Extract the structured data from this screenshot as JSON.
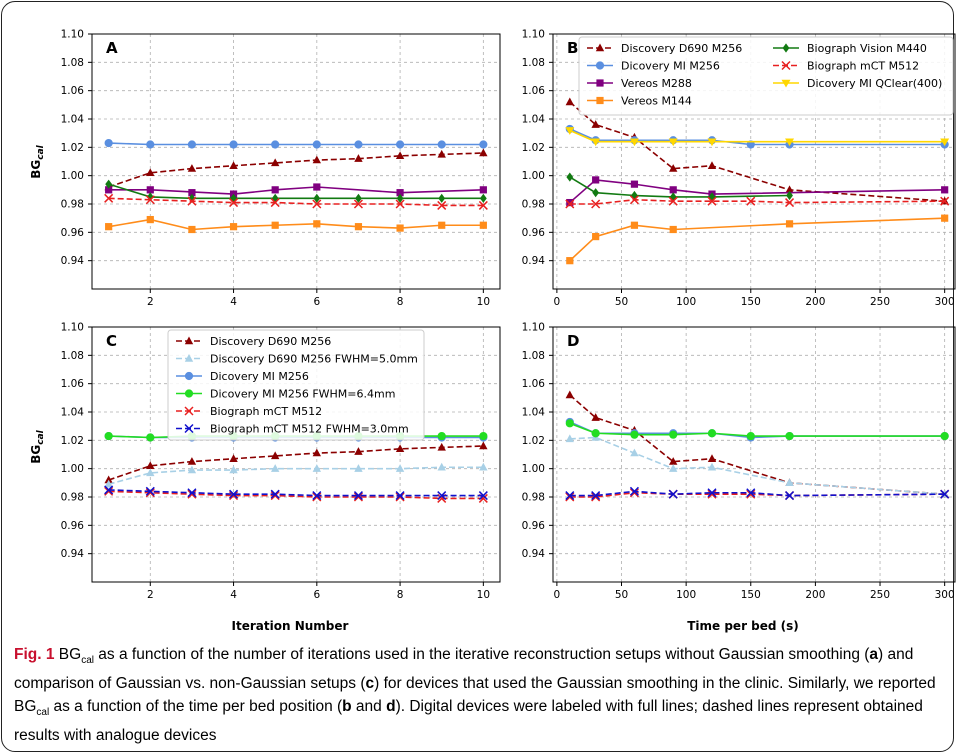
{
  "caption": {
    "fig_label": "Fig. 1",
    "part1": " BG",
    "sub": "cal",
    "part2": " as a function of the number of iterations used in the iterative reconstruction setups without Gaussian smoothing (",
    "a": "a",
    "part3": ") and comparison of Gaussian vs. non-Gaussian setups (",
    "c": "c",
    "part4": ") for devices that used the Gaussian smoothing in the clinic. Similarly, we reported BG",
    "sub2": "cal",
    "part5": " as a function of the time per bed position (",
    "b": "b",
    "and": " and ",
    "d": "d",
    "part6": "). Digital devices were labeled with full lines; dashed lines represent obtained results with analogue devices"
  },
  "colors": {
    "discovery_d690": "#8b0000",
    "discovery_d690_fwhm": "#a8d0e6",
    "discovery_mi": "#5a8fe0",
    "discovery_mi_fwhm": "#22dd22",
    "biograph_mct": "#e82020",
    "biograph_mct_fwhm": "#1010cc",
    "vereos_m288": "#800080",
    "vereos_m144": "#ff8c1a",
    "biograph_vision": "#127a12",
    "qclear": "#ffd700"
  },
  "axis_titles": {
    "ylabel_main": "BG",
    "ylabel_sub": "cal",
    "xlabel_left": "Iteration Number",
    "xlabel_right": "Time per bed (s)"
  },
  "chart_data": [
    {
      "panel": "A",
      "type": "line",
      "xlim": [
        0.6,
        10.4
      ],
      "ylim": [
        0.92,
        1.1
      ],
      "xticks": [
        2,
        4,
        6,
        8,
        10
      ],
      "yticks": [
        0.94,
        0.96,
        0.98,
        1.0,
        1.02,
        1.04,
        1.06,
        1.08,
        1.1
      ],
      "grid": true,
      "series": [
        {
          "key": "discovery_d690",
          "style": "dashed",
          "marker": "triangle",
          "x": [
            1,
            2,
            3,
            4,
            5,
            6,
            7,
            8,
            9,
            10
          ],
          "values": [
            0.992,
            1.002,
            1.005,
            1.007,
            1.009,
            1.011,
            1.012,
            1.014,
            1.015,
            1.016
          ]
        },
        {
          "key": "discovery_mi",
          "style": "solid",
          "marker": "circle",
          "x": [
            1,
            2,
            3,
            4,
            5,
            6,
            7,
            8,
            9,
            10
          ],
          "values": [
            1.023,
            1.022,
            1.022,
            1.022,
            1.022,
            1.022,
            1.022,
            1.022,
            1.022,
            1.022
          ]
        },
        {
          "key": "vereos_m288",
          "style": "solid",
          "marker": "square",
          "x": [
            1,
            2,
            4,
            5,
            6,
            8,
            10
          ],
          "values": [
            0.99,
            0.99,
            0.987,
            0.99,
            0.992,
            0.988,
            0.99
          ]
        },
        {
          "key": "vereos_m288",
          "style": "solid",
          "marker": "square",
          "x": [
            3
          ],
          "values": [
            0.988
          ]
        },
        {
          "key": "biograph_vision",
          "style": "solid",
          "marker": "diamond",
          "x": [
            1,
            2,
            3,
            4,
            5,
            6,
            7,
            8,
            9,
            10
          ],
          "values": [
            0.994,
            0.985,
            0.984,
            0.984,
            0.984,
            0.984,
            0.984,
            0.984,
            0.984,
            0.984
          ]
        },
        {
          "key": "biograph_mct",
          "style": "dashed",
          "marker": "x",
          "x": [
            1,
            2,
            3,
            4,
            5,
            6,
            7,
            8,
            9,
            10
          ],
          "values": [
            0.984,
            0.983,
            0.982,
            0.981,
            0.981,
            0.98,
            0.98,
            0.98,
            0.979,
            0.979
          ]
        },
        {
          "key": "vereos_m144",
          "style": "solid",
          "marker": "square",
          "x": [
            1,
            2,
            3,
            4,
            5,
            6,
            7,
            8,
            9,
            10
          ],
          "values": [
            0.964,
            0.969,
            0.962,
            0.964,
            0.965,
            0.966,
            0.964,
            0.963,
            0.965,
            0.965
          ]
        }
      ]
    },
    {
      "panel": "B",
      "type": "line",
      "xlim": [
        -3,
        308
      ],
      "ylim": [
        0.92,
        1.1
      ],
      "xticks": [
        0,
        50,
        100,
        150,
        200,
        250,
        300
      ],
      "yticks": [
        0.94,
        0.96,
        0.98,
        1.0,
        1.02,
        1.04,
        1.06,
        1.08,
        1.1
      ],
      "grid": true,
      "legend": {
        "position": "top",
        "entries": [
          {
            "key": "discovery_d690",
            "style": "dashed",
            "marker": "triangle",
            "label": "Discovery D690 M256"
          },
          {
            "key": "discovery_mi",
            "style": "solid",
            "marker": "circle",
            "label": "Dicovery MI M256"
          },
          {
            "key": "vereos_m288",
            "style": "solid",
            "marker": "square",
            "label": "Vereos M288"
          },
          {
            "key": "vereos_m144",
            "style": "solid",
            "marker": "square",
            "label": "Vereos M144"
          },
          {
            "key": "biograph_vision",
            "style": "solid",
            "marker": "diamond",
            "label": "Biograph Vision M440"
          },
          {
            "key": "biograph_mct",
            "style": "dashed",
            "marker": "x",
            "label": "Biograph mCT M512"
          },
          {
            "key": "qclear",
            "style": "solid",
            "marker": "tri-down",
            "label": "Dicovery MI QClear(400)"
          }
        ]
      },
      "series": [
        {
          "key": "discovery_d690",
          "style": "dashed",
          "marker": "triangle",
          "x": [
            10,
            30,
            60,
            90,
            120,
            180,
            300
          ],
          "values": [
            1.052,
            1.036,
            1.027,
            1.005,
            1.007,
            0.99,
            0.982
          ]
        },
        {
          "key": "discovery_mi",
          "style": "solid",
          "marker": "circle",
          "x": [
            10,
            30,
            60,
            90,
            120,
            150,
            180,
            300
          ],
          "values": [
            1.033,
            1.025,
            1.025,
            1.025,
            1.025,
            1.022,
            1.022,
            1.022
          ]
        },
        {
          "key": "qclear",
          "style": "solid",
          "marker": "tri-down",
          "x": [
            10,
            30,
            60,
            90,
            120,
            180,
            300
          ],
          "values": [
            1.032,
            1.024,
            1.024,
            1.024,
            1.024,
            1.024,
            1.024
          ]
        },
        {
          "key": "vereos_m288",
          "style": "solid",
          "marker": "square",
          "x": [
            10,
            30,
            60,
            90,
            120,
            300
          ],
          "values": [
            0.981,
            0.997,
            0.994,
            0.99,
            0.987,
            0.99
          ]
        },
        {
          "key": "biograph_vision",
          "style": "solid",
          "marker": "diamond",
          "x": [
            10,
            30,
            60,
            90,
            120,
            180
          ],
          "values": [
            0.999,
            0.988,
            0.986,
            0.985,
            0.985,
            0.986
          ]
        },
        {
          "key": "biograph_mct",
          "style": "dashed",
          "marker": "x",
          "x": [
            10,
            30,
            60,
            90,
            120,
            150,
            180,
            300
          ],
          "values": [
            0.98,
            0.98,
            0.983,
            0.982,
            0.982,
            0.982,
            0.981,
            0.982
          ]
        },
        {
          "key": "vereos_m144",
          "style": "solid",
          "marker": "square",
          "x": [
            10,
            30,
            60,
            90,
            180,
            300
          ],
          "values": [
            0.94,
            0.957,
            0.965,
            0.962,
            0.966,
            0.97
          ]
        }
      ]
    },
    {
      "panel": "C",
      "type": "line",
      "xlim": [
        0.6,
        10.4
      ],
      "ylim": [
        0.92,
        1.1
      ],
      "xticks": [
        2,
        4,
        6,
        8,
        10
      ],
      "yticks": [
        0.94,
        0.96,
        0.98,
        1.0,
        1.02,
        1.04,
        1.06,
        1.08,
        1.1
      ],
      "grid": true,
      "legend": {
        "position": "top-center",
        "entries": [
          {
            "key": "discovery_d690",
            "style": "dashed",
            "marker": "triangle",
            "label": "Discovery D690 M256"
          },
          {
            "key": "discovery_d690_fwhm",
            "style": "dashed",
            "marker": "triangle",
            "label": "Discovery D690 M256 FWHM=5.0mm"
          },
          {
            "key": "discovery_mi",
            "style": "solid",
            "marker": "circle",
            "label": "Dicovery MI M256"
          },
          {
            "key": "discovery_mi_fwhm",
            "style": "solid",
            "marker": "circle",
            "label": "Dicovery MI M256 FWHM=6.4mm"
          },
          {
            "key": "biograph_mct",
            "style": "dashed",
            "marker": "x",
            "label": "Biograph mCT M512"
          },
          {
            "key": "biograph_mct_fwhm",
            "style": "dashed",
            "marker": "x",
            "label": "Biograph mCT M512 FWHM=3.0mm"
          }
        ]
      },
      "series": [
        {
          "key": "discovery_d690",
          "style": "dashed",
          "marker": "triangle",
          "x": [
            1,
            2,
            3,
            4,
            5,
            6,
            7,
            8,
            9,
            10
          ],
          "values": [
            0.992,
            1.002,
            1.005,
            1.007,
            1.009,
            1.011,
            1.012,
            1.014,
            1.015,
            1.016
          ]
        },
        {
          "key": "discovery_d690_fwhm",
          "style": "dashed",
          "marker": "triangle",
          "x": [
            1,
            2,
            3,
            4,
            5,
            6,
            7,
            8,
            9,
            10
          ],
          "values": [
            0.989,
            0.997,
            0.999,
            0.999,
            1.0,
            1.0,
            1.0,
            1.0,
            1.001,
            1.001
          ]
        },
        {
          "key": "discovery_mi",
          "style": "solid",
          "marker": "circle",
          "x": [
            1,
            2,
            3,
            4,
            5,
            6,
            7,
            8,
            9,
            10
          ],
          "values": [
            1.023,
            1.022,
            1.022,
            1.022,
            1.022,
            1.022,
            1.022,
            1.022,
            1.022,
            1.022
          ]
        },
        {
          "key": "discovery_mi_fwhm",
          "style": "solid",
          "marker": "circle",
          "x": [
            1,
            2,
            3,
            4,
            5,
            6,
            7,
            8,
            9,
            10
          ],
          "values": [
            1.023,
            1.022,
            1.023,
            1.023,
            1.023,
            1.023,
            1.023,
            1.023,
            1.023,
            1.023
          ]
        },
        {
          "key": "biograph_mct",
          "style": "dashed",
          "marker": "x",
          "x": [
            1,
            2,
            3,
            4,
            5,
            6,
            7,
            8,
            9,
            10
          ],
          "values": [
            0.984,
            0.983,
            0.982,
            0.981,
            0.981,
            0.98,
            0.98,
            0.98,
            0.979,
            0.979
          ]
        },
        {
          "key": "biograph_mct_fwhm",
          "style": "dashed",
          "marker": "x",
          "x": [
            1,
            2,
            3,
            4,
            5,
            6,
            7,
            8,
            9,
            10
          ],
          "values": [
            0.985,
            0.984,
            0.983,
            0.982,
            0.982,
            0.981,
            0.981,
            0.981,
            0.981,
            0.981
          ]
        }
      ]
    },
    {
      "panel": "D",
      "type": "line",
      "xlim": [
        -3,
        308
      ],
      "ylim": [
        0.92,
        1.1
      ],
      "xticks": [
        0,
        50,
        100,
        150,
        200,
        250,
        300
      ],
      "yticks": [
        0.94,
        0.96,
        0.98,
        1.0,
        1.02,
        1.04,
        1.06,
        1.08,
        1.1
      ],
      "grid": true,
      "series": [
        {
          "key": "discovery_d690",
          "style": "dashed",
          "marker": "triangle",
          "x": [
            10,
            30,
            60,
            90,
            120,
            180,
            300
          ],
          "values": [
            1.052,
            1.036,
            1.027,
            1.005,
            1.007,
            0.99,
            0.982
          ]
        },
        {
          "key": "discovery_d690_fwhm",
          "style": "dashed",
          "marker": "triangle",
          "x": [
            10,
            30,
            60,
            90,
            120,
            180,
            300
          ],
          "values": [
            1.021,
            1.022,
            1.011,
            1.0,
            1.001,
            0.99,
            0.982
          ]
        },
        {
          "key": "discovery_mi",
          "style": "solid",
          "marker": "circle",
          "x": [
            10,
            30,
            60,
            90,
            120,
            150,
            180,
            300
          ],
          "values": [
            1.033,
            1.025,
            1.025,
            1.025,
            1.025,
            1.022,
            1.023,
            1.023
          ]
        },
        {
          "key": "discovery_mi_fwhm",
          "style": "solid",
          "marker": "circle",
          "x": [
            10,
            30,
            60,
            90,
            120,
            150,
            180,
            300
          ],
          "values": [
            1.032,
            1.025,
            1.024,
            1.024,
            1.025,
            1.023,
            1.023,
            1.023
          ]
        },
        {
          "key": "biograph_mct",
          "style": "dashed",
          "marker": "x",
          "x": [
            10,
            30,
            60,
            90,
            120,
            150,
            180,
            300
          ],
          "values": [
            0.98,
            0.98,
            0.983,
            0.982,
            0.982,
            0.982,
            0.981,
            0.982
          ]
        },
        {
          "key": "biograph_mct_fwhm",
          "style": "dashed",
          "marker": "x",
          "x": [
            10,
            30,
            60,
            90,
            120,
            150,
            180,
            300
          ],
          "values": [
            0.981,
            0.981,
            0.984,
            0.982,
            0.983,
            0.983,
            0.981,
            0.982
          ]
        }
      ]
    }
  ]
}
